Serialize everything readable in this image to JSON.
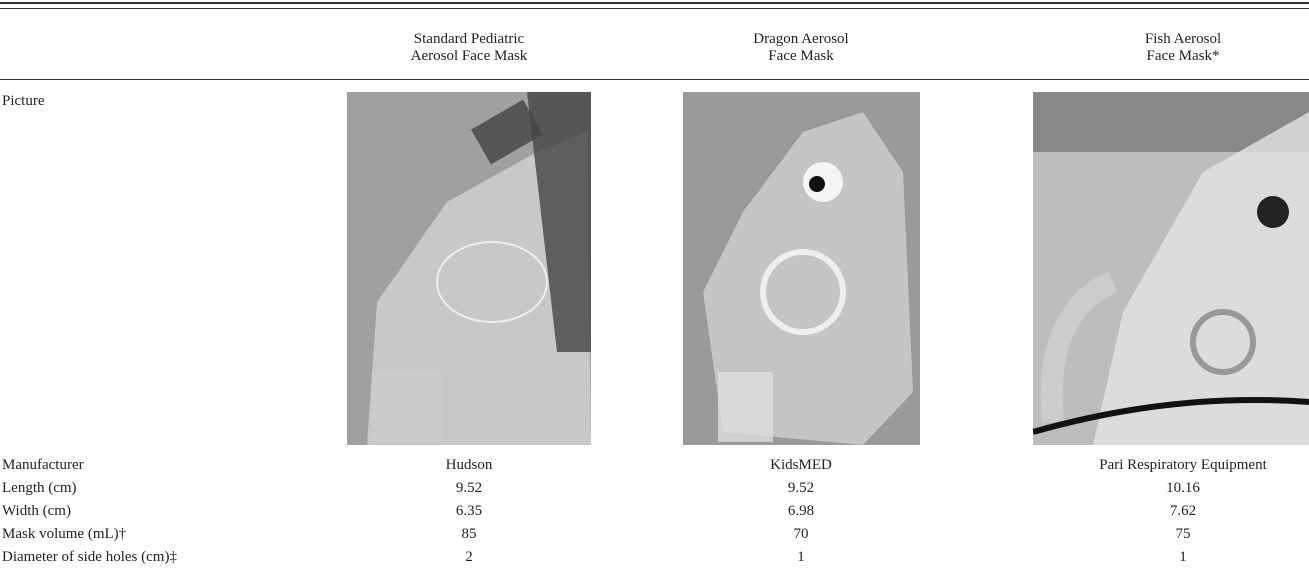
{
  "table": {
    "columns": [
      [
        "Standard Pediatric",
        "Aerosol Face Mask"
      ],
      [
        "Dragon Aerosol",
        "Face Mask"
      ],
      [
        "Fish Aerosol",
        "Face Mask*"
      ]
    ],
    "picture_label": "Picture",
    "rows": [
      [
        "Manufacturer",
        "Hudson",
        "KidsMED",
        "Pari Respiratory Equipment"
      ],
      [
        "Length (cm)",
        "9.52",
        "9.52",
        "10.16"
      ],
      [
        "Width (cm)",
        "6.35",
        "6.98",
        "7.62"
      ],
      [
        "Mask volume (mL)†",
        "85",
        "70",
        "75"
      ],
      [
        "Diameter of side holes (cm)‡",
        "2",
        "1",
        "1"
      ]
    ]
  }
}
